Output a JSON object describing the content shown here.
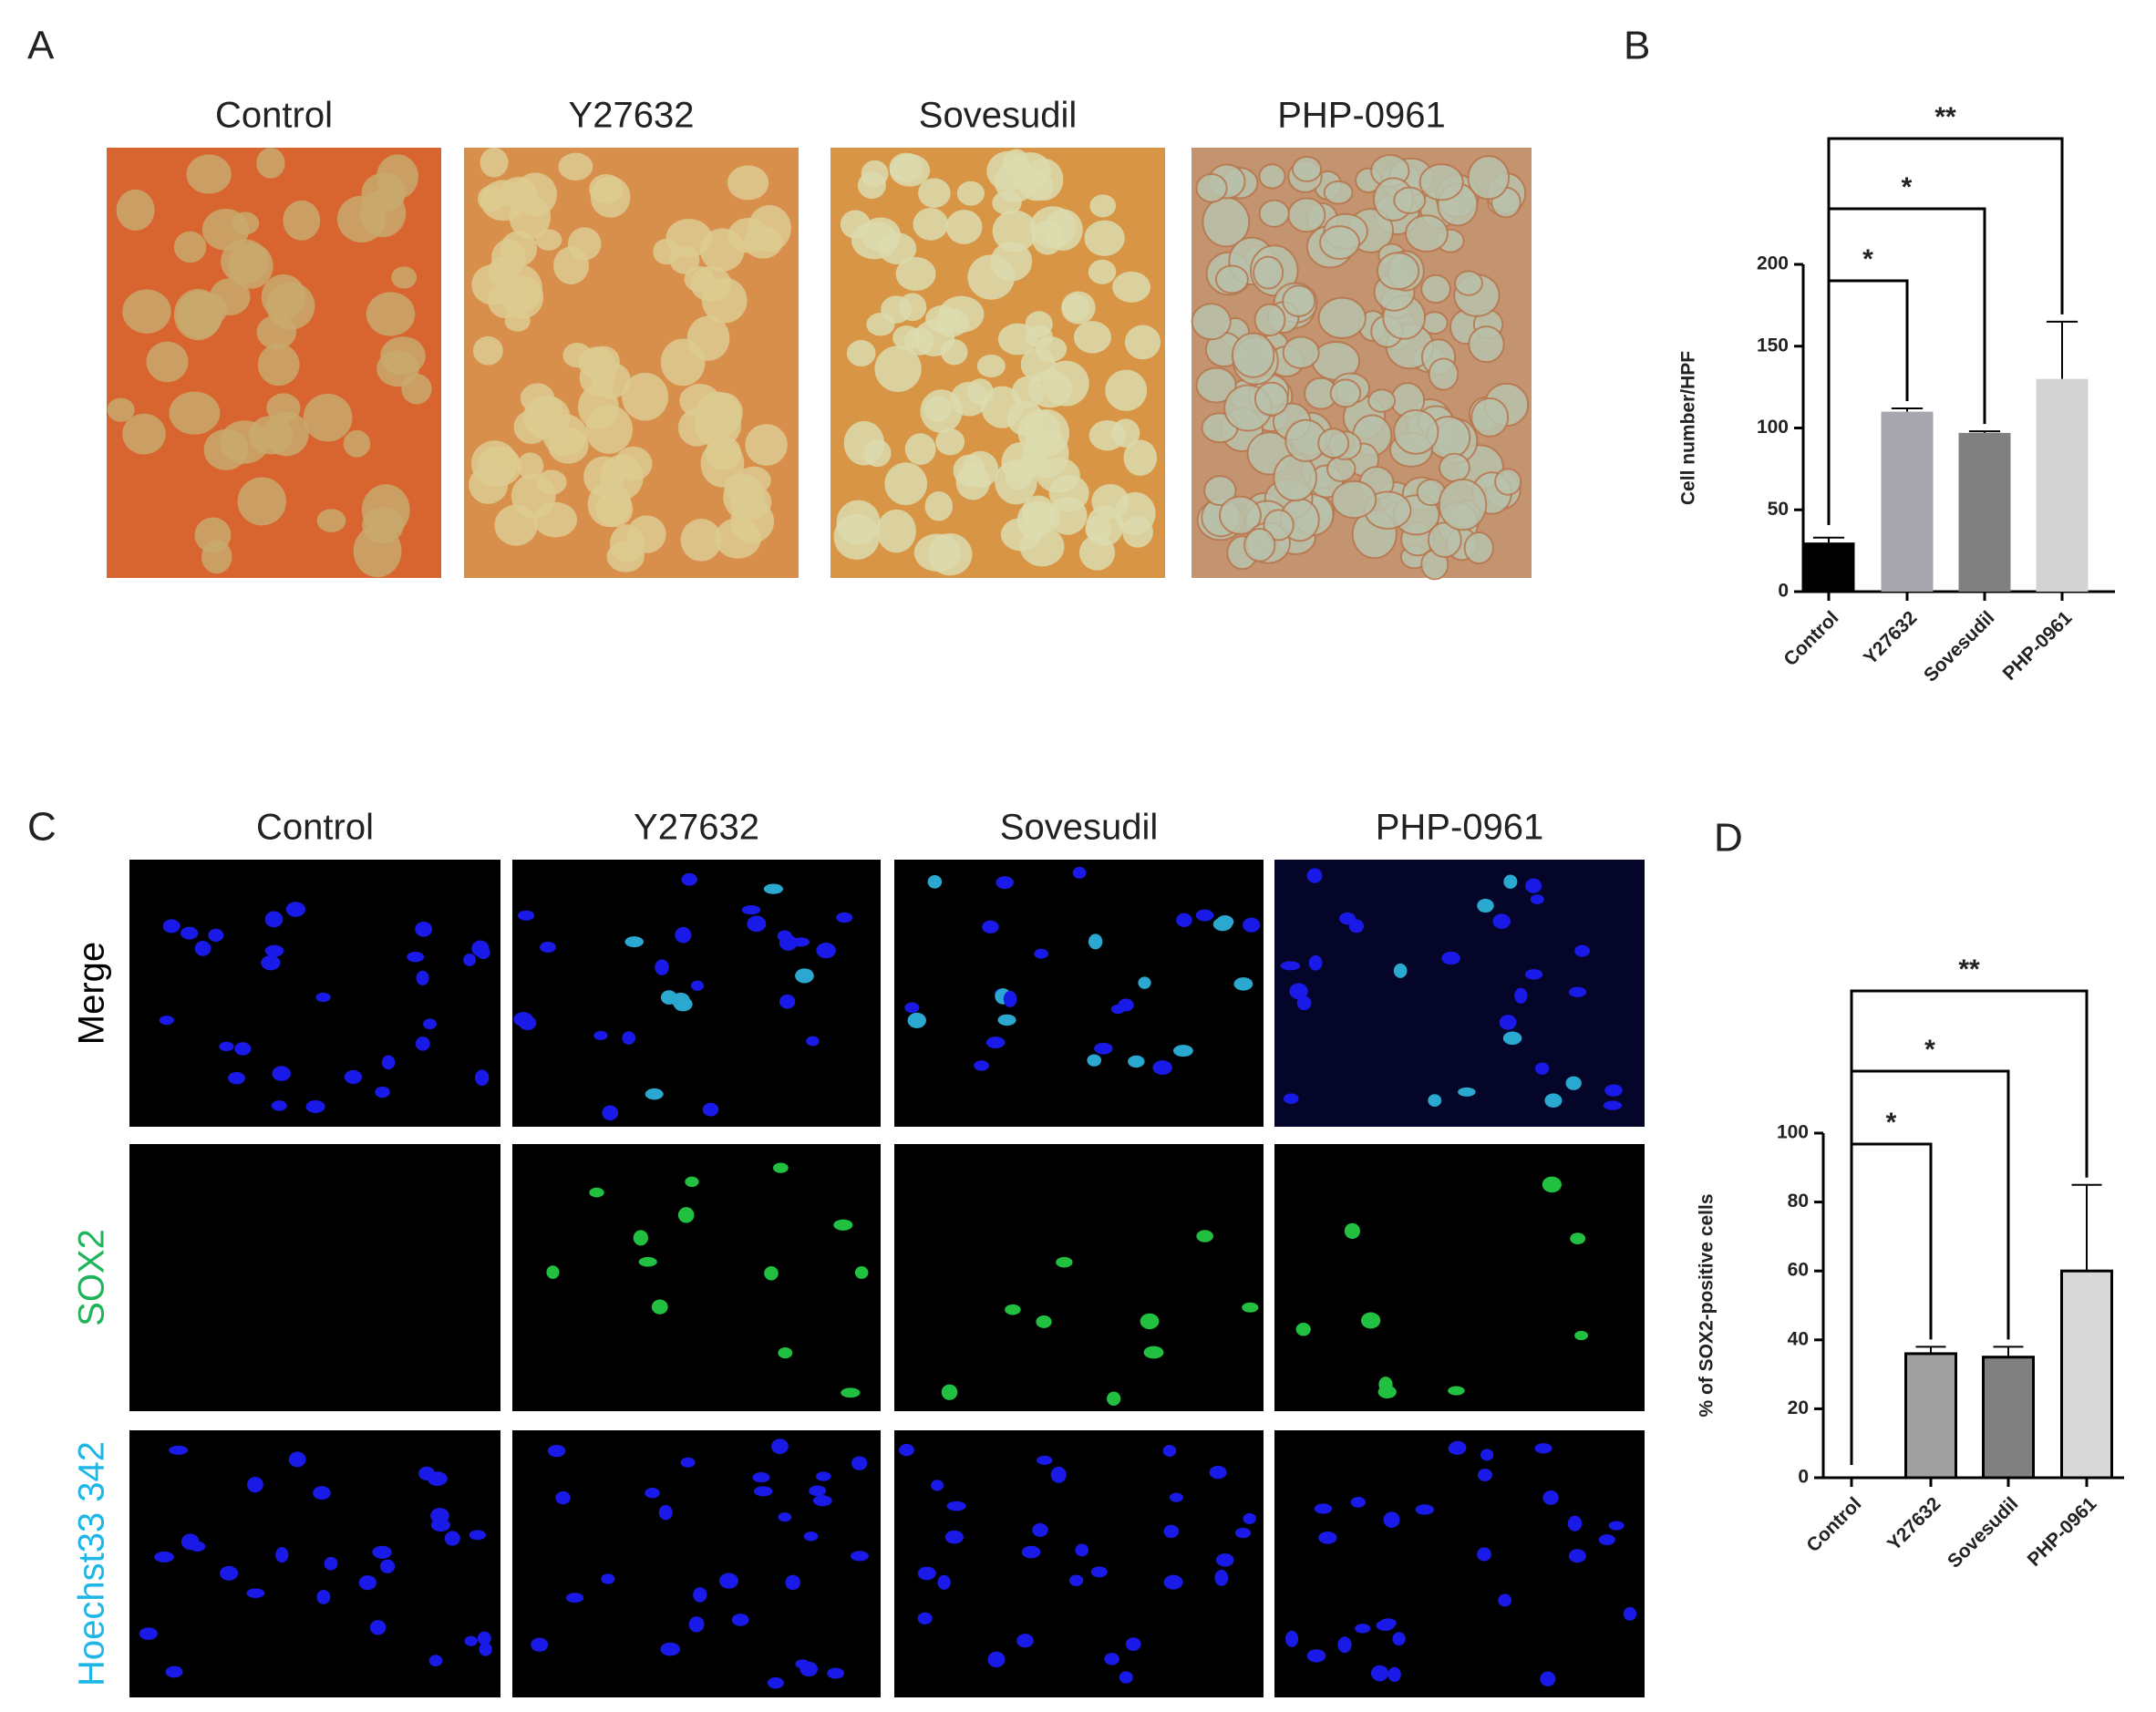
{
  "panel_a": {
    "label": "A",
    "columns": [
      "Control",
      "Y27632",
      "Sovesudil",
      "PHP-0961"
    ]
  },
  "panel_c": {
    "label": "C",
    "columns": [
      "Control",
      "Y27632",
      "Sovesudil",
      "PHP-0961"
    ],
    "rows": [
      "Merge",
      "SOX2",
      "Hoechst33 342"
    ]
  },
  "chart_data": [
    {
      "type": "bar",
      "label": "B",
      "y_label": "Cell number/HPF",
      "categories": [
        "Control",
        "Y27632",
        "Sovesudil",
        "PHP-0961"
      ],
      "series": [
        {
          "values": [
            30,
            110,
            97,
            130
          ],
          "errors": [
            3,
            2,
            1,
            35
          ],
          "colors": [
            "#000000",
            "#a6a6ac",
            "#808080",
            "#d3d3d3"
          ]
        }
      ],
      "ylim": [
        0,
        200
      ],
      "yticks": [
        0,
        50,
        100,
        150,
        200
      ],
      "significance": [
        "*",
        "*",
        "**"
      ]
    },
    {
      "type": "bar",
      "label": "D",
      "y_label": "% of SOX2-positive cells",
      "categories": [
        "Control",
        "Y27632",
        "Sovesudil",
        "PHP-0961"
      ],
      "series": [
        {
          "values": [
            0,
            36,
            35,
            60
          ],
          "errors": [
            0,
            2,
            3,
            25
          ],
          "colors": [
            "#000000",
            "#a0a0a0",
            "#808080",
            "#d8d8d8"
          ]
        }
      ],
      "ylim": [
        0,
        100
      ],
      "yticks": [
        0,
        20,
        40,
        60,
        80,
        100
      ],
      "significance": [
        "*",
        "*",
        "**"
      ]
    }
  ]
}
